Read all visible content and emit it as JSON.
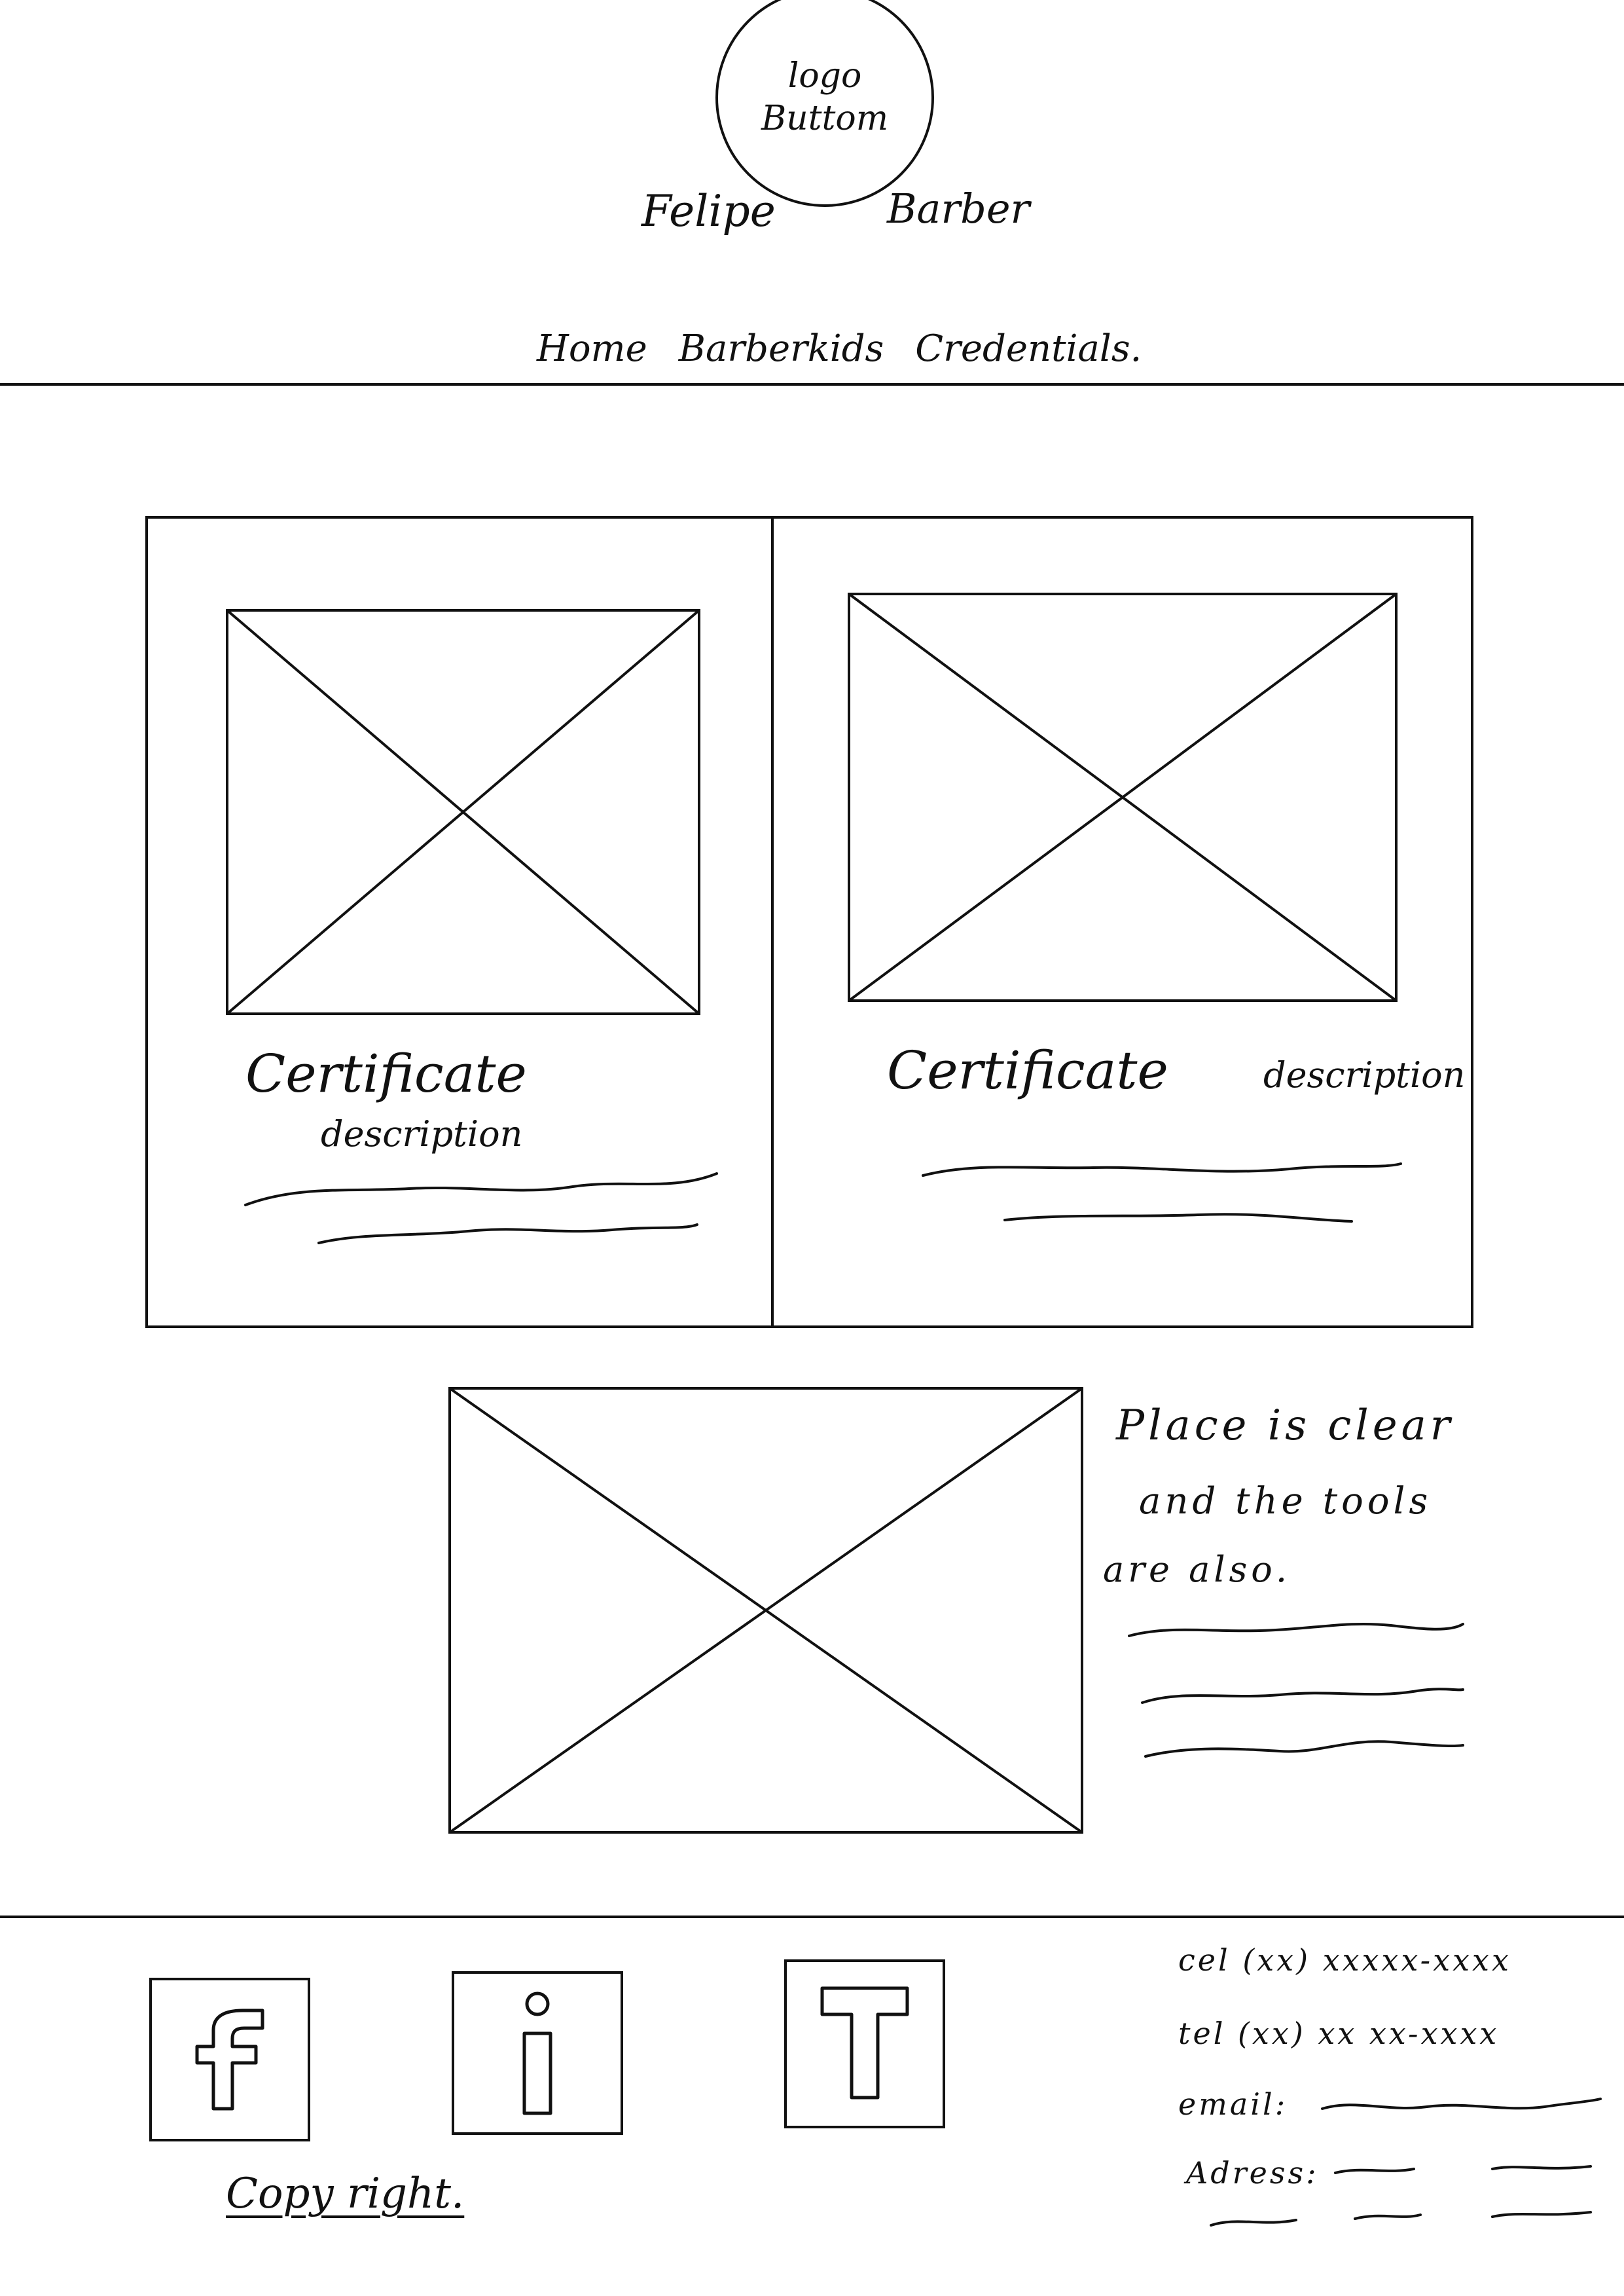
{
  "header": {
    "logo_line1": "logo",
    "logo_line2": "Buttom",
    "brand_first": "Felipe",
    "brand_last": "Barber"
  },
  "nav": {
    "items": [
      "Home",
      "Barberkids",
      "Credentials."
    ]
  },
  "cards": [
    {
      "title": "Certificate",
      "desc": "description"
    },
    {
      "title": "Certificate",
      "desc": "description"
    }
  ],
  "feature": {
    "line1": "Place is clear",
    "line2": "and the tools",
    "line3": "are also."
  },
  "footer": {
    "icons": [
      {
        "letter": "f",
        "name": "facebook-icon"
      },
      {
        "letter": "i",
        "name": "instagram-icon"
      },
      {
        "letter": "T",
        "name": "twitter-icon"
      }
    ],
    "cel": "cel (xx) xxxxx-xxxx",
    "tel": "tel (xx) xx xx-xxxx",
    "email_label": "email:",
    "address_label": "Adress:",
    "copyright": "Copy right."
  }
}
